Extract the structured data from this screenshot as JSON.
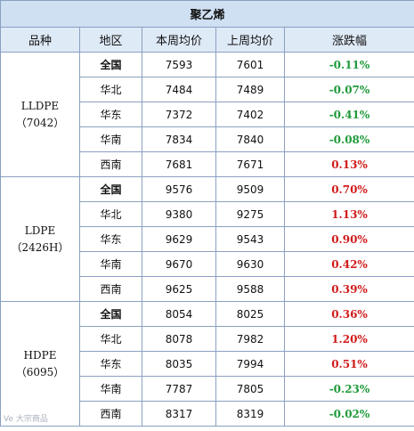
{
  "table": {
    "title": "聚乙烯",
    "headers": [
      "品种",
      "地区",
      "本周均价",
      "上周均价",
      "涨跌幅"
    ],
    "groups": [
      {
        "product": "LLDPE",
        "grade": "（7042）",
        "rows": [
          {
            "region": "全国",
            "this_week": "7593",
            "last_week": "7601",
            "change": "-0.11%",
            "direction": "down"
          },
          {
            "region": "华北",
            "this_week": "7484",
            "last_week": "7489",
            "change": "-0.07%",
            "direction": "down"
          },
          {
            "region": "华东",
            "this_week": "7372",
            "last_week": "7402",
            "change": "-0.41%",
            "direction": "down"
          },
          {
            "region": "华南",
            "this_week": "7834",
            "last_week": "7840",
            "change": "-0.08%",
            "direction": "down"
          },
          {
            "region": "西南",
            "this_week": "7681",
            "last_week": "7671",
            "change": "0.13%",
            "direction": "up"
          }
        ]
      },
      {
        "product": "LDPE",
        "grade": "（2426H）",
        "rows": [
          {
            "region": "全国",
            "this_week": "9576",
            "last_week": "9509",
            "change": "0.70%",
            "direction": "up"
          },
          {
            "region": "华北",
            "this_week": "9380",
            "last_week": "9275",
            "change": "1.13%",
            "direction": "up"
          },
          {
            "region": "华东",
            "this_week": "9629",
            "last_week": "9543",
            "change": "0.90%",
            "direction": "up"
          },
          {
            "region": "华南",
            "this_week": "9670",
            "last_week": "9630",
            "change": "0.42%",
            "direction": "up"
          },
          {
            "region": "西南",
            "this_week": "9625",
            "last_week": "9588",
            "change": "0.39%",
            "direction": "up"
          }
        ]
      },
      {
        "product": "HDPE",
        "grade": "（6095）",
        "rows": [
          {
            "region": "全国",
            "this_week": "8054",
            "last_week": "8025",
            "change": "0.36%",
            "direction": "up"
          },
          {
            "region": "华北",
            "this_week": "8078",
            "last_week": "7982",
            "change": "1.20%",
            "direction": "up"
          },
          {
            "region": "华东",
            "this_week": "8035",
            "last_week": "7994",
            "change": "0.51%",
            "direction": "up"
          },
          {
            "region": "华南",
            "this_week": "7787",
            "last_week": "7805",
            "change": "-0.23%",
            "direction": "down"
          },
          {
            "region": "西南",
            "this_week": "8317",
            "last_week": "8319",
            "change": "-0.02%",
            "direction": "down"
          }
        ]
      }
    ]
  },
  "watermark": "Ve 大宗商品",
  "colors": {
    "up": "#d11a1a",
    "down": "#1f9a3a",
    "title_bg": "#cfe0f3",
    "header_bg": "#dfeaf7",
    "border": "#8aa0c0"
  }
}
